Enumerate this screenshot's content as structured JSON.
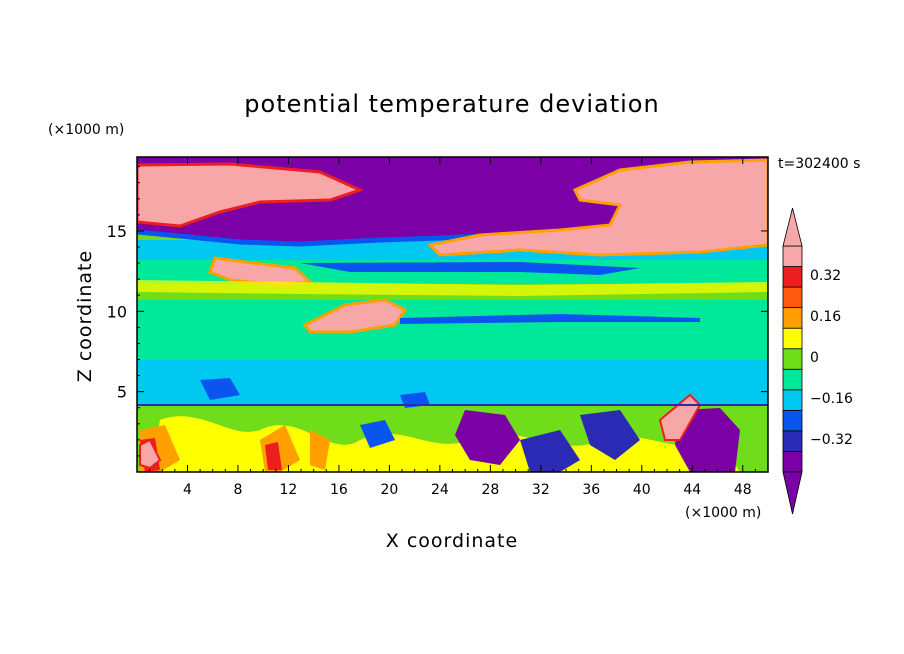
{
  "chart_data": {
    "type": "heatmap",
    "title": "potential temperature deviation",
    "xlabel": "X coordinate",
    "ylabel": "Z coordinate",
    "x_unit_label": "(×1000 m)",
    "y_unit_label": "(×1000 m)",
    "time_label": "t=302400 s",
    "xlim": [
      0,
      50
    ],
    "ylim": [
      0,
      19.6
    ],
    "x_ticks": [
      4,
      8,
      12,
      16,
      20,
      24,
      28,
      32,
      36,
      40,
      44,
      48
    ],
    "y_ticks": [
      5,
      10,
      15
    ],
    "colorbar": {
      "levels": [
        -0.4,
        -0.32,
        -0.24,
        -0.16,
        -0.08,
        0,
        0.08,
        0.16,
        0.24,
        0.32,
        0.4
      ],
      "tick_labels": [
        "0.32",
        "0.16",
        "0",
        "−0.16",
        "−0.32"
      ],
      "colors": [
        "#7b00a6",
        "#2a2ab5",
        "#0a55ef",
        "#00c8f0",
        "#00e89a",
        "#70dd1a",
        "#ffff00",
        "#ffa000",
        "#ff5a10",
        "#ee1e1e",
        "#f7a7a7"
      ]
    }
  }
}
